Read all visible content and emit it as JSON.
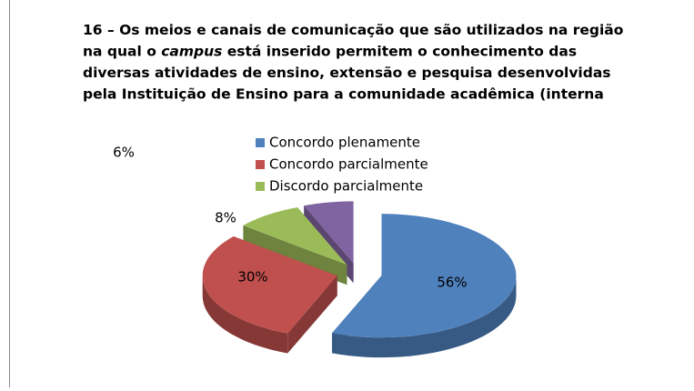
{
  "chart_data": {
    "type": "pie3d",
    "title": [
      [
        {
          "text": "16 – Os meios e canais de comunicação que são utilizados na região"
        }
      ],
      [
        {
          "text": "na qual o "
        },
        {
          "text": "campus",
          "italic": true
        },
        {
          "text": " está inserido permitem o conhecimento das"
        }
      ],
      [
        {
          "text": "diversas atividades de ensino, extensão e pesquisa desenvolvidas"
        }
      ],
      [
        {
          "text": "pela Instituição de Ensino para a comunidade acadêmica (interna"
        }
      ]
    ],
    "categories": [
      "Concordo plenamente",
      "Concordo parcialmente",
      "Discordo parcialmente",
      null
    ],
    "values": [
      56,
      30,
      8,
      6
    ],
    "value_labels": [
      "56%",
      "30%",
      "8%",
      "6%"
    ],
    "colors": [
      "#4f81bd",
      "#c0504d",
      "#9bbb59",
      "#8064a2"
    ]
  }
}
